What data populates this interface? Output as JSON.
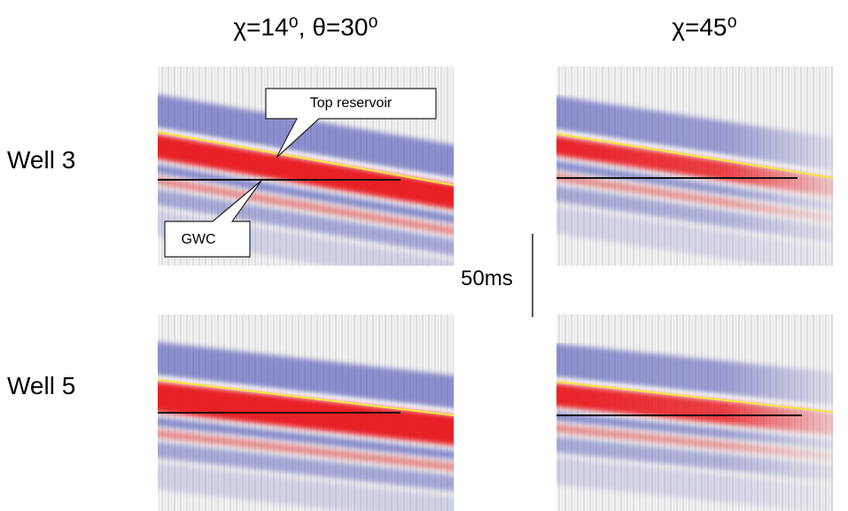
{
  "columns": [
    {
      "title": "χ=14⁰, θ=30⁰"
    },
    {
      "title": "χ=45⁰"
    }
  ],
  "rows": [
    {
      "label": "Well 3"
    },
    {
      "label": "Well 5"
    }
  ],
  "annotations": [
    {
      "text": "Top reservoir"
    },
    {
      "text": "GWC"
    }
  ],
  "scale_bar": {
    "label": "50ms"
  }
}
